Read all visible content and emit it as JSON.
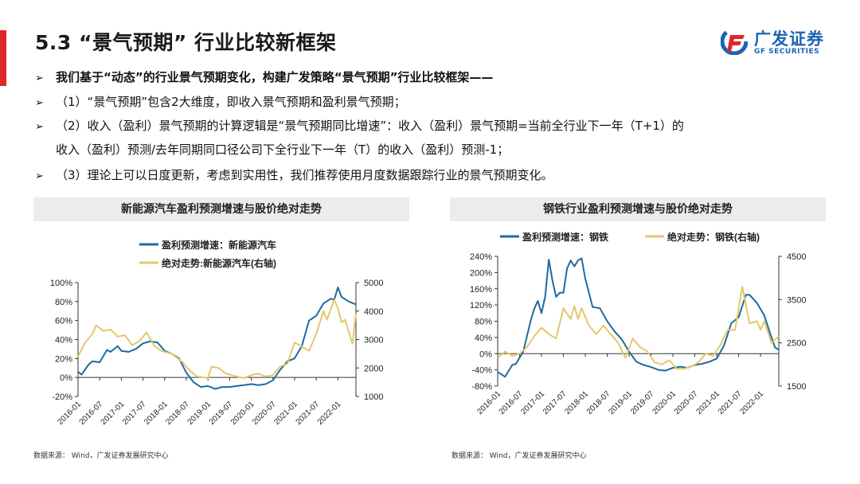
{
  "header": {
    "title": "5.3 “景气预期” 行业比较新框架",
    "logo_cn": "广发证券",
    "logo_en": "GF SECURITIES"
  },
  "bullets": [
    {
      "marker": "➢",
      "text": "我们基于“动态”的行业景气预期变化，构建广发策略“景气预期”行业比较框架——"
    },
    {
      "marker": "➢",
      "text": "（1）“景气预期”包含2大维度，即收入景气预期和盈利景气预期；"
    },
    {
      "marker": "➢",
      "text": "（2）收入（盈利）景气预期的计算逻辑是“景气预期同比增速”：收入（盈利）景气预期=当前全行业下一年（T+1）的"
    },
    {
      "marker": "",
      "text": "收入（盈利）预测/去年同期同口径公司下全行业下一年（T）的收入（盈利）预测-1；"
    },
    {
      "marker": "➢",
      "text": "（3）理论上可以日度更新，考虑到实用性，我们推荐使用月度数据跟踪行业的景气预期变化。"
    }
  ],
  "colors": {
    "blue": "#1f6aa0",
    "yellow": "#e5c76b",
    "accent_red": "#e0262b"
  },
  "chart_data": [
    {
      "type": "line",
      "title": "新能源汽车盈利预测增速与股价绝对走势",
      "source": "数据来源： Wind，广发证券发展研究中心",
      "x_ticks": [
        "2016-01",
        "2016-07",
        "2017-01",
        "2017-07",
        "2018-01",
        "2018-07",
        "2019-01",
        "2019-07",
        "2020-01",
        "2020-07",
        "2021-01",
        "2021-07",
        "2022-01"
      ],
      "y_left": {
        "ticks": [
          "100%",
          "80%",
          "60%",
          "40%",
          "20%",
          "0%",
          "-20%"
        ],
        "range": [
          -20,
          100
        ]
      },
      "y_right": {
        "ticks": [
          "5000",
          "4000",
          "3000",
          "2000",
          "1000"
        ],
        "range": [
          1000,
          5000
        ]
      },
      "legend_position": "top",
      "series": [
        {
          "name": "盈利预测增速：新能源汽车",
          "axis": "left",
          "color": "#1f6aa0",
          "points": [
            [
              "2016-01",
              6
            ],
            [
              "2016-02",
              3
            ],
            [
              "2016-04",
              14
            ],
            [
              "2016-05",
              17
            ],
            [
              "2016-07",
              16
            ],
            [
              "2016-09",
              29
            ],
            [
              "2016-10",
              27
            ],
            [
              "2016-12",
              33
            ],
            [
              "2017-01",
              28
            ],
            [
              "2017-03",
              27
            ],
            [
              "2017-05",
              30
            ],
            [
              "2017-07",
              36
            ],
            [
              "2017-09",
              38
            ],
            [
              "2017-11",
              37
            ],
            [
              "2018-01",
              28
            ],
            [
              "2018-03",
              25
            ],
            [
              "2018-05",
              20
            ],
            [
              "2018-07",
              5
            ],
            [
              "2018-09",
              -5
            ],
            [
              "2018-11",
              -10
            ],
            [
              "2019-01",
              -9
            ],
            [
              "2019-03",
              -12
            ],
            [
              "2019-05",
              -10
            ],
            [
              "2019-07",
              -10
            ],
            [
              "2019-09",
              -9
            ],
            [
              "2019-11",
              -8
            ],
            [
              "2020-01",
              -7
            ],
            [
              "2020-03",
              -8
            ],
            [
              "2020-05",
              -7
            ],
            [
              "2020-07",
              -3
            ],
            [
              "2020-09",
              8
            ],
            [
              "2020-11",
              17
            ],
            [
              "2021-01",
              20
            ],
            [
              "2021-03",
              33
            ],
            [
              "2021-05",
              60
            ],
            [
              "2021-07",
              65
            ],
            [
              "2021-09",
              78
            ],
            [
              "2021-11",
              83
            ],
            [
              "2021-12",
              82
            ],
            [
              "2022-01",
              95
            ],
            [
              "2022-02",
              85
            ],
            [
              "2022-04",
              80
            ],
            [
              "2022-06",
              77
            ]
          ]
        },
        {
          "name": "绝对走势:新能源汽车(右轴)",
          "axis": "right",
          "color": "#e5c76b",
          "points": [
            [
              "2016-01",
              2400
            ],
            [
              "2016-03",
              2900
            ],
            [
              "2016-05",
              3200
            ],
            [
              "2016-06",
              3500
            ],
            [
              "2016-08",
              3300
            ],
            [
              "2016-10",
              3350
            ],
            [
              "2016-12",
              3100
            ],
            [
              "2017-02",
              3150
            ],
            [
              "2017-04",
              2800
            ],
            [
              "2017-06",
              2950
            ],
            [
              "2017-08",
              3250
            ],
            [
              "2017-10",
              2800
            ],
            [
              "2017-12",
              2600
            ],
            [
              "2018-03",
              2500
            ],
            [
              "2018-06",
              2200
            ],
            [
              "2018-08",
              1900
            ],
            [
              "2018-10",
              1700
            ],
            [
              "2019-01",
              1650
            ],
            [
              "2019-02",
              2050
            ],
            [
              "2019-04",
              2000
            ],
            [
              "2019-06",
              1800
            ],
            [
              "2019-09",
              1700
            ],
            [
              "2019-11",
              1650
            ],
            [
              "2020-01",
              1750
            ],
            [
              "2020-03",
              1800
            ],
            [
              "2020-05",
              1700
            ],
            [
              "2020-07",
              1750
            ],
            [
              "2020-09",
              2050
            ],
            [
              "2020-11",
              2150
            ],
            [
              "2021-01",
              2900
            ],
            [
              "2021-03",
              2750
            ],
            [
              "2021-05",
              2600
            ],
            [
              "2021-07",
              3200
            ],
            [
              "2021-09",
              4000
            ],
            [
              "2021-10",
              3700
            ],
            [
              "2021-12",
              4400
            ],
            [
              "2022-01",
              4100
            ],
            [
              "2022-02",
              3600
            ],
            [
              "2022-03",
              3700
            ],
            [
              "2022-05",
              2850
            ],
            [
              "2022-06",
              3900
            ]
          ]
        }
      ]
    },
    {
      "type": "line",
      "title": "钢铁行业盈利预测增速与股价绝对走势",
      "source": "数据来源： Wind，广发证券发展研究中心",
      "x_ticks": [
        "2016-01",
        "2016-07",
        "2017-01",
        "2017-07",
        "2018-01",
        "2018-07",
        "2019-01",
        "2019-07",
        "2020-01",
        "2020-07",
        "2021-01",
        "2021-07",
        "2022-01"
      ],
      "y_left": {
        "ticks": [
          "240%",
          "200%",
          "160%",
          "120%",
          "80%",
          "40%",
          "0%",
          "-40%",
          "-80%"
        ],
        "range": [
          -80,
          240
        ]
      },
      "y_right": {
        "ticks": [
          "4500",
          "3500",
          "2500",
          "1500"
        ],
        "range": [
          1500,
          4500
        ]
      },
      "legend_position": "top",
      "series": [
        {
          "name": "盈利预测增速：钢铁",
          "axis": "left",
          "color": "#1f6aa0",
          "points": [
            [
              "2016-01",
              -45
            ],
            [
              "2016-03",
              -57
            ],
            [
              "2016-05",
              -28
            ],
            [
              "2016-06",
              -25
            ],
            [
              "2016-08",
              5
            ],
            [
              "2016-10",
              80
            ],
            [
              "2016-11",
              110
            ],
            [
              "2016-12",
              130
            ],
            [
              "2017-01",
              100
            ],
            [
              "2017-02",
              140
            ],
            [
              "2017-03",
              232
            ],
            [
              "2017-04",
              180
            ],
            [
              "2017-05",
              140
            ],
            [
              "2017-06",
              150
            ],
            [
              "2017-07",
              150
            ],
            [
              "2017-08",
              210
            ],
            [
              "2017-09",
              230
            ],
            [
              "2017-10",
              215
            ],
            [
              "2017-11",
              230
            ],
            [
              "2017-12",
              235
            ],
            [
              "2018-01",
              185
            ],
            [
              "2018-03",
              115
            ],
            [
              "2018-05",
              112
            ],
            [
              "2018-07",
              80
            ],
            [
              "2018-09",
              55
            ],
            [
              "2018-11",
              35
            ],
            [
              "2019-01",
              5
            ],
            [
              "2019-03",
              -20
            ],
            [
              "2019-05",
              -28
            ],
            [
              "2019-07",
              -33
            ],
            [
              "2019-09",
              -40
            ],
            [
              "2019-11",
              -42
            ],
            [
              "2020-01",
              -35
            ],
            [
              "2020-03",
              -32
            ],
            [
              "2020-05",
              -35
            ],
            [
              "2020-07",
              -28
            ],
            [
              "2020-09",
              -25
            ],
            [
              "2020-11",
              -20
            ],
            [
              "2021-01",
              -12
            ],
            [
              "2021-03",
              20
            ],
            [
              "2021-05",
              75
            ],
            [
              "2021-07",
              90
            ],
            [
              "2021-09",
              145
            ],
            [
              "2021-10",
              145
            ],
            [
              "2021-12",
              125
            ],
            [
              "2022-02",
              95
            ],
            [
              "2022-04",
              40
            ],
            [
              "2022-05",
              15
            ],
            [
              "2022-06",
              10
            ]
          ]
        },
        {
          "name": "绝对走势：钢铁(右轴)",
          "axis": "right",
          "color": "#e5c76b",
          "points": [
            [
              "2016-01",
              2150
            ],
            [
              "2016-03",
              2300
            ],
            [
              "2016-05",
              2200
            ],
            [
              "2016-07",
              2250
            ],
            [
              "2016-09",
              2400
            ],
            [
              "2016-11",
              2650
            ],
            [
              "2017-01",
              2850
            ],
            [
              "2017-03",
              2700
            ],
            [
              "2017-05",
              2600
            ],
            [
              "2017-07",
              3300
            ],
            [
              "2017-09",
              3050
            ],
            [
              "2017-10",
              3350
            ],
            [
              "2017-11",
              3050
            ],
            [
              "2017-12",
              3300
            ],
            [
              "2018-02",
              2900
            ],
            [
              "2018-04",
              2700
            ],
            [
              "2018-06",
              2900
            ],
            [
              "2018-08",
              2700
            ],
            [
              "2018-10",
              2500
            ],
            [
              "2018-12",
              2150
            ],
            [
              "2019-02",
              2600
            ],
            [
              "2019-04",
              2400
            ],
            [
              "2019-06",
              2300
            ],
            [
              "2019-08",
              2050
            ],
            [
              "2019-10",
              2000
            ],
            [
              "2019-12",
              2100
            ],
            [
              "2020-02",
              1900
            ],
            [
              "2020-04",
              1900
            ],
            [
              "2020-06",
              1950
            ],
            [
              "2020-08",
              2050
            ],
            [
              "2020-10",
              2250
            ],
            [
              "2020-12",
              2200
            ],
            [
              "2021-02",
              2450
            ],
            [
              "2021-04",
              2800
            ],
            [
              "2021-06",
              2800
            ],
            [
              "2021-08",
              3800
            ],
            [
              "2021-10",
              2950
            ],
            [
              "2021-12",
              3000
            ],
            [
              "2022-01",
              2800
            ],
            [
              "2022-02",
              3000
            ],
            [
              "2022-04",
              2500
            ],
            [
              "2022-06",
              2650
            ]
          ]
        }
      ]
    }
  ]
}
